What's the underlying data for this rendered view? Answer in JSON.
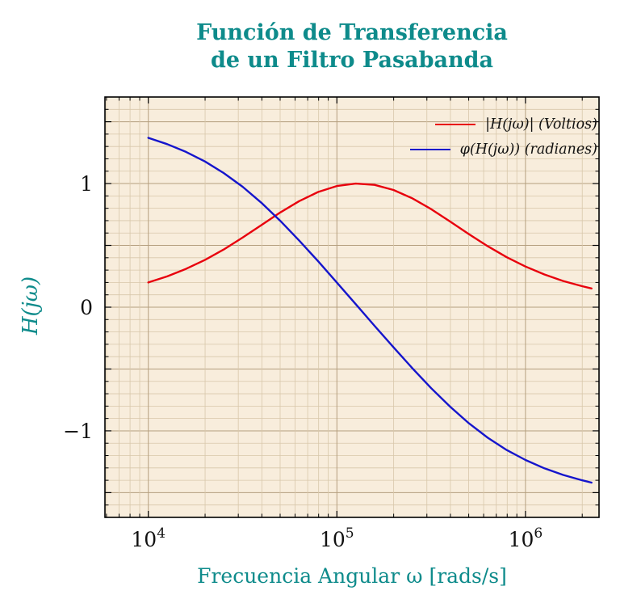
{
  "title": {
    "line1": "Función de Transferencia",
    "line2": "de un Filtro Pasabanda"
  },
  "axes": {
    "x_label": "Frecuencia Angular ω [rads/s]",
    "y_label": "H(jω)"
  },
  "colors": {
    "accent_teal": "#0e8b8b",
    "magnitude_red": "#e8000d",
    "phase_blue": "#1515cc",
    "plot_bg": "#f8eddc",
    "grid_minor": "#d8c7aa",
    "grid_major": "#b49e7e",
    "axis_frame": "#000000",
    "tick_text": "#111111"
  },
  "legend": {
    "entries": [
      {
        "label": "|H(jω)| (Voltios)",
        "series": "magnitude"
      },
      {
        "label": "φ(H(jω)) (radianes)",
        "series": "phase"
      }
    ]
  },
  "chart_data": {
    "type": "line",
    "title": "Función de Transferencia de un Filtro Pasabanda",
    "xlabel": "Frecuencia Angular ω [rads/s]",
    "ylabel": "H(jω)",
    "x_scale": "log",
    "grid": "both",
    "legend_position": "top-right-inside",
    "xlim_log10": [
      3.77,
      6.39
    ],
    "ylim": [
      -1.7,
      1.7
    ],
    "x_ticks": [
      {
        "omega": 10000,
        "base": "10",
        "exp": "4"
      },
      {
        "omega": 100000,
        "base": "10",
        "exp": "5"
      },
      {
        "omega": 1000000,
        "base": "10",
        "exp": "6"
      }
    ],
    "y_ticks": [
      {
        "value": 1,
        "label": "1"
      },
      {
        "value": 0,
        "label": "0"
      },
      {
        "value": -1,
        "label": "−1"
      }
    ],
    "x": [
      10000,
      12589,
      15849,
      19953,
      25119,
      31623,
      39811,
      50119,
      63096,
      79433,
      100000,
      125893,
      158489,
      199526,
      251189,
      316228,
      398107,
      501187,
      630957,
      794328,
      1000000,
      1258925,
      1584893,
      1995262,
      2238721
    ],
    "series": [
      {
        "name": "|H(jω)| (Voltios)",
        "color": "#e8000d",
        "values": [
          0.2,
          0.249,
          0.31,
          0.382,
          0.467,
          0.563,
          0.664,
          0.766,
          0.858,
          0.932,
          0.98,
          1.0,
          0.989,
          0.948,
          0.881,
          0.793,
          0.693,
          0.591,
          0.493,
          0.405,
          0.329,
          0.265,
          0.212,
          0.17,
          0.152
        ]
      },
      {
        "name": "φ(H(jω)) (radianes)",
        "color": "#1515cc",
        "values": [
          1.37,
          1.319,
          1.256,
          1.179,
          1.085,
          0.974,
          0.844,
          0.698,
          0.539,
          0.372,
          0.199,
          0.024,
          -0.151,
          -0.324,
          -0.493,
          -0.655,
          -0.804,
          -0.939,
          -1.056,
          -1.155,
          -1.236,
          -1.303,
          -1.357,
          -1.4,
          -1.419
        ]
      }
    ]
  }
}
